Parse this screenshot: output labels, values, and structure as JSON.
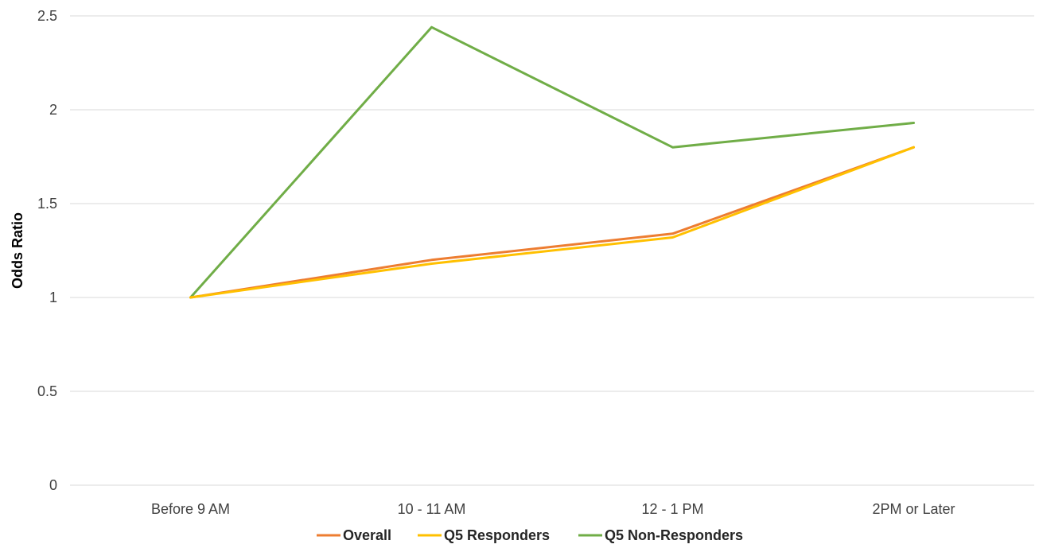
{
  "chart_data": {
    "type": "line",
    "title": "",
    "xlabel": "",
    "ylabel": "Odds Ratio",
    "categories": [
      "Before 9 AM",
      "10 - 11 AM",
      "12 - 1 PM",
      "2PM or Later"
    ],
    "ylim": [
      0,
      2.5
    ],
    "yticks": [
      "0",
      "0.5",
      "1",
      "1.5",
      "2",
      "2.5"
    ],
    "grid": true,
    "legend_position": "bottom",
    "series": [
      {
        "name": "Overall",
        "color": "#ED7D31",
        "values": [
          1.0,
          1.2,
          1.34,
          1.8
        ]
      },
      {
        "name": "Q5 Responders",
        "color": "#FFC000",
        "values": [
          1.0,
          1.18,
          1.32,
          1.8
        ]
      },
      {
        "name": "Q5 Non-Responders",
        "color": "#70AD47",
        "values": [
          1.0,
          2.44,
          1.8,
          1.93
        ]
      }
    ]
  }
}
